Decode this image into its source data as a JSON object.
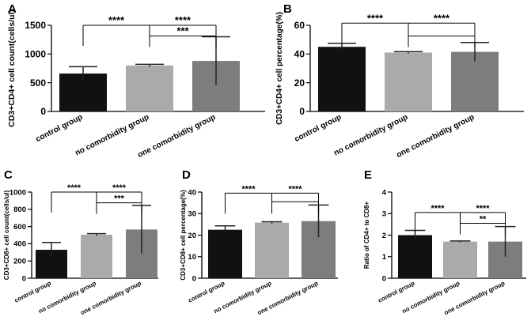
{
  "chart_data": [
    {
      "panel": "A",
      "type": "bar",
      "categories": [
        "control group",
        "no comorbidity group",
        "one comorbidity group"
      ],
      "values": [
        660,
        800,
        880
      ],
      "errors": [
        120,
        20,
        420
      ],
      "bar_colors": [
        "#111111",
        "#aaaaaa",
        "#7d7d7d"
      ],
      "ylabel": "CD3+CD4+ cell count(cells/ul)",
      "ylim": [
        0,
        1500
      ],
      "yticks": [
        "0",
        "500",
        "1000",
        "1500"
      ],
      "significance": [
        {
          "from": 0,
          "to": 2,
          "level": 1500,
          "label": "****"
        },
        {
          "from": 1,
          "to": 2,
          "level": 1315,
          "label": "***"
        }
      ]
    },
    {
      "panel": "B",
      "type": "bar",
      "categories": [
        "control group",
        "no comorbidity group",
        "one comorbidity group"
      ],
      "values": [
        45,
        41,
        41.5
      ],
      "errors": [
        2.5,
        0.6,
        6.5
      ],
      "bar_colors": [
        "#111111",
        "#aaaaaa",
        "#7d7d7d"
      ],
      "ylabel": "CD3+CD4+ cell percentage(%)",
      "ylim": [
        0,
        60
      ],
      "yticks": [
        "0",
        "20",
        "40",
        "60"
      ],
      "significance": [
        {
          "from": 0,
          "to": 2,
          "level": 61.5,
          "label": "****"
        },
        {
          "from": 1,
          "to": 2,
          "level": 52.5,
          "label": null
        }
      ]
    },
    {
      "panel": "C",
      "type": "bar",
      "categories": [
        "control group",
        "no comorbidity group",
        "one comorbidity group"
      ],
      "values": [
        330,
        505,
        565
      ],
      "errors": [
        85,
        12,
        280
      ],
      "bar_colors": [
        "#111111",
        "#aaaaaa",
        "#7d7d7d"
      ],
      "ylabel": "CD3+CD8+ cell count(cells/ul)",
      "ylim": [
        0,
        1000
      ],
      "yticks": [
        "0",
        "200",
        "400",
        "600",
        "800",
        "1000"
      ],
      "significance": [
        {
          "from": 0,
          "to": 2,
          "level": 1000,
          "label": "****"
        },
        {
          "from": 1,
          "to": 2,
          "level": 875,
          "label": "***"
        }
      ]
    },
    {
      "panel": "D",
      "type": "bar",
      "categories": [
        "control group",
        "no comorbidity group",
        "one comorbidity group"
      ],
      "values": [
        22.5,
        25.8,
        26.5
      ],
      "errors": [
        1.8,
        0.4,
        7.5
      ],
      "bar_colors": [
        "#111111",
        "#aaaaaa",
        "#7d7d7d"
      ],
      "ylabel": "CD3+CD8+ cell percentage(%)",
      "ylim": [
        0,
        40
      ],
      "yticks": [
        "0",
        "10",
        "20",
        "30",
        "40"
      ],
      "significance": [
        {
          "from": 0,
          "to": 2,
          "level": 39.5,
          "label": "****"
        },
        {
          "from": 1,
          "to": 2,
          "level": 35.5,
          "label": null
        }
      ]
    },
    {
      "panel": "E",
      "type": "bar",
      "categories": [
        "control group",
        "no comorbidity group",
        "one comorbidity group"
      ],
      "values": [
        2.0,
        1.7,
        1.7
      ],
      "errors": [
        0.22,
        0.03,
        0.7
      ],
      "bar_colors": [
        "#111111",
        "#aaaaaa",
        "#7d7d7d"
      ],
      "ylabel": "Ratio of CD4+ to CD8+",
      "ylim": [
        0,
        4
      ],
      "yticks": [
        "0",
        "1",
        "2",
        "3",
        "4"
      ],
      "significance": [
        {
          "from": 0,
          "to": 2,
          "level": 3.05,
          "label": "****"
        },
        {
          "from": 1,
          "to": 2,
          "level": 2.55,
          "label": "**"
        }
      ]
    }
  ]
}
